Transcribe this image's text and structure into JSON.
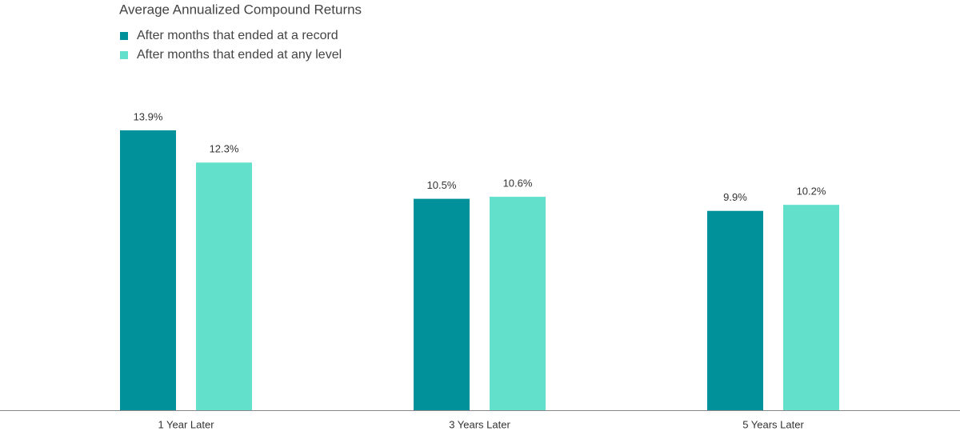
{
  "chart_data": {
    "type": "bar",
    "title": "Average Annualized Compound Returns",
    "categories": [
      "1 Year Later",
      "3 Years Later",
      "5 Years Later"
    ],
    "series": [
      {
        "name": "After months that ended at a record",
        "color": "#00919a",
        "values": [
          13.9,
          10.5,
          9.9
        ],
        "value_labels": [
          "13.9%",
          "10.5%",
          "9.9%"
        ]
      },
      {
        "name": "After months that ended at any level",
        "color": "#62e0cc",
        "values": [
          12.3,
          10.6,
          10.2
        ],
        "value_labels": [
          "12.3%",
          "10.6%",
          "10.2%"
        ]
      }
    ]
  }
}
